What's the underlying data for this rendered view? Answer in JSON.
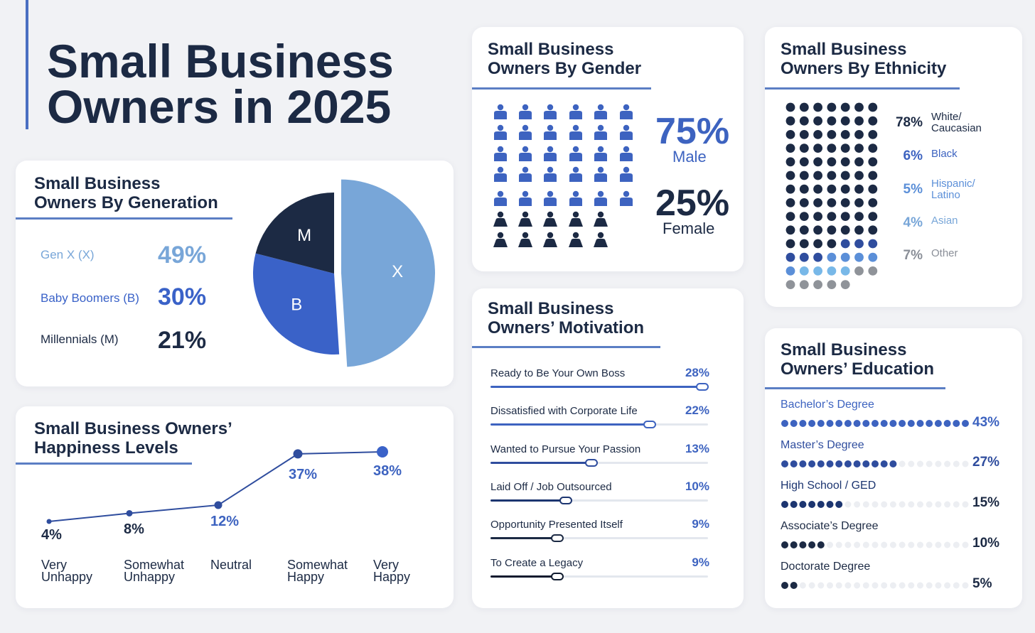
{
  "title": {
    "line1": "Small Business",
    "line2": "Owners in 2025"
  },
  "colors": {
    "navy": "#1c2a44",
    "blue": "#3d63c0",
    "light_blue": "#78a6d8",
    "mid_blue": "#3a62c8",
    "gray": "#8a8f98"
  },
  "generation": {
    "title_line1": "Small Business",
    "title_line2": "Owners By Generation",
    "rows": [
      {
        "label": "Gen X (X)",
        "value": "49%"
      },
      {
        "label": "Baby Boomers (B)",
        "value": "30%"
      },
      {
        "label": "Millennials (M)",
        "value": "21%"
      }
    ]
  },
  "happiness": {
    "title_line1": "Small Business Owners’",
    "title_line2": "Happiness Levels",
    "points": [
      {
        "line1": "Very",
        "line2": "Unhappy",
        "label": "4%"
      },
      {
        "line1": "Somewhat",
        "line2": "Unhappy",
        "label": "8%"
      },
      {
        "line1": "Neutral",
        "line2": "",
        "label": "12%"
      },
      {
        "line1": "Somewhat",
        "line2": "Happy",
        "label": "37%"
      },
      {
        "line1": "Very",
        "line2": "Happy",
        "label": "38%"
      }
    ]
  },
  "gender": {
    "title_line1": "Small Business",
    "title_line2": "Owners By Gender",
    "male_pct": "75%",
    "male_label": "Male",
    "female_pct": "25%",
    "female_label": "Female"
  },
  "motivation": {
    "title_line1": "Small Business",
    "title_line2": "Owners’ Motivation",
    "items": [
      {
        "label": "Ready to Be Your Own Boss",
        "value": "28%"
      },
      {
        "label": "Dissatisfied with Corporate Life",
        "value": "22%"
      },
      {
        "label": "Wanted to Pursue Your Passion",
        "value": "13%"
      },
      {
        "label": "Laid Off / Job Outsourced",
        "value": "10%"
      },
      {
        "label": "Opportunity Presented Itself",
        "value": "9%"
      },
      {
        "label": "To Create a Legacy",
        "value": "9%"
      }
    ]
  },
  "ethnicity": {
    "title_line1": "Small Business",
    "title_line2": "Owners By Ethnicity",
    "items": [
      {
        "pct": "78%",
        "line1": "White/",
        "line2": "Caucasian"
      },
      {
        "pct": "6%",
        "line1": "Black",
        "line2": ""
      },
      {
        "pct": "5%",
        "line1": "Hispanic/",
        "line2": "Latino"
      },
      {
        "pct": "4%",
        "line1": "Asian",
        "line2": ""
      },
      {
        "pct": "7%",
        "line1": "Other",
        "line2": ""
      }
    ]
  },
  "education": {
    "title_line1": "Small Business",
    "title_line2": "Owners’ Education",
    "items": [
      {
        "label": "Bachelor’s Degree",
        "value": "43%"
      },
      {
        "label": "Master’s Degree",
        "value": "27%"
      },
      {
        "label": "High School / GED",
        "value": "15%"
      },
      {
        "label": "Associate’s Degree",
        "value": "10%"
      },
      {
        "label": "Doctorate Degree",
        "value": "5%"
      }
    ]
  },
  "chart_data": [
    {
      "type": "pie",
      "title": "Small Business Owners By Generation",
      "categories": [
        "Gen X (X)",
        "Baby Boomers (B)",
        "Millennials (M)"
      ],
      "slice_labels": [
        "X",
        "B",
        "M"
      ],
      "values": [
        49,
        30,
        21
      ]
    },
    {
      "type": "line",
      "title": "Small Business Owners’ Happiness Levels",
      "categories": [
        "Very Unhappy",
        "Somewhat Unhappy",
        "Neutral",
        "Somewhat Happy",
        "Very Happy"
      ],
      "values": [
        4,
        8,
        12,
        37,
        38
      ],
      "ylim": [
        0,
        40
      ]
    },
    {
      "type": "bar",
      "title": "Small Business Owners By Gender",
      "categories": [
        "Male",
        "Female"
      ],
      "values": [
        75,
        25
      ],
      "icon_total": 40
    },
    {
      "type": "bar",
      "title": "Small Business Owners’ Motivation",
      "categories": [
        "Ready to Be Your Own Boss",
        "Dissatisfied with Corporate Life",
        "Wanted to Pursue Your Passion",
        "Laid Off / Job Outsourced",
        "Opportunity Presented Itself",
        "To Create a Legacy"
      ],
      "values": [
        28,
        22,
        13,
        10,
        9,
        9
      ]
    },
    {
      "type": "bar",
      "title": "Small Business Owners By Ethnicity",
      "categories": [
        "White/Caucasian",
        "Black",
        "Hispanic/Latino",
        "Asian",
        "Other"
      ],
      "values": [
        78,
        6,
        5,
        4,
        7
      ],
      "dot_total": 91
    },
    {
      "type": "bar",
      "title": "Small Business Owners’ Education",
      "categories": [
        "Bachelor’s Degree",
        "Master’s Degree",
        "High School / GED",
        "Associate’s Degree",
        "Doctorate Degree"
      ],
      "values": [
        43,
        27,
        15,
        10,
        5
      ],
      "dot_total": 21
    }
  ]
}
